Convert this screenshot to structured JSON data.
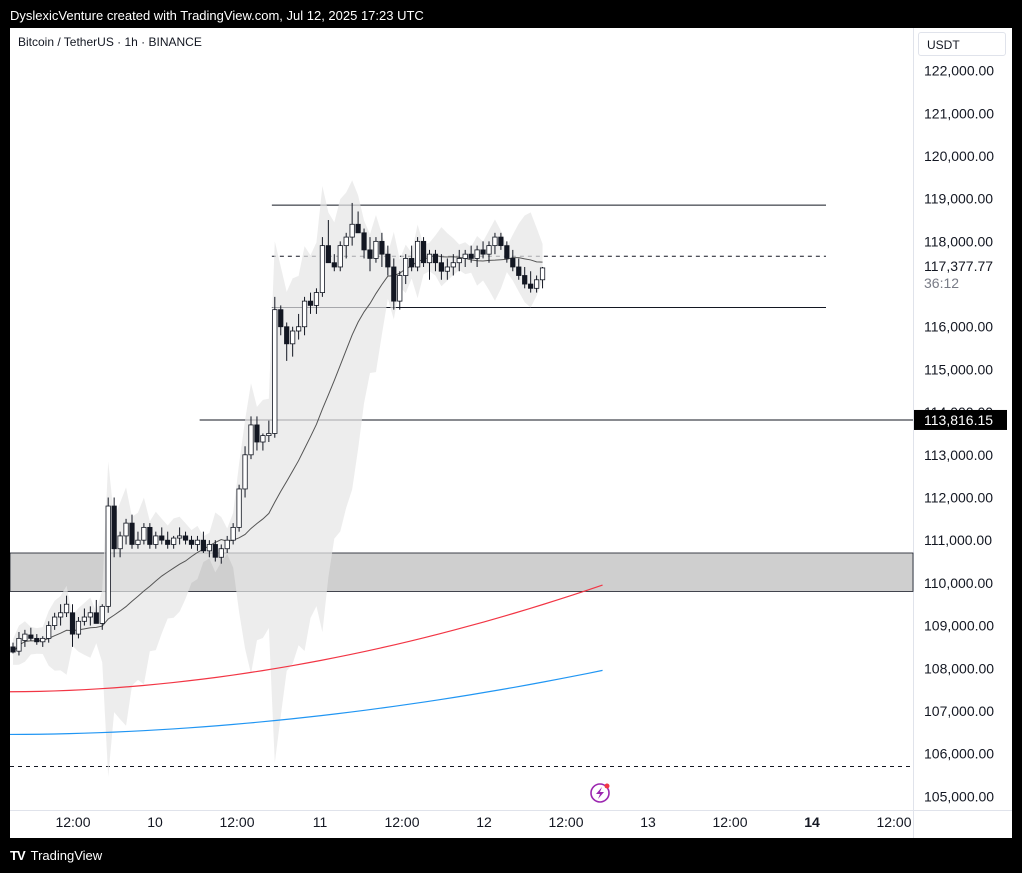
{
  "header": {
    "attribution": "DyslexicVenture created with TradingView.com, Jul 12, 2025 17:23 UTC"
  },
  "footer": {
    "brand": "TradingView"
  },
  "chart_data": {
    "type": "candlestick",
    "title": "Bitcoin / TetherUS · 1h · BINANCE",
    "currency": "USDT",
    "ylim": [
      104500,
      122700
    ],
    "y_ticks": [
      "122,000.00",
      "121,000.00",
      "120,000.00",
      "119,000.00",
      "118,000.00",
      "116,000.00",
      "115,000.00",
      "114,000.00",
      "113,000.00",
      "112,000.00",
      "111,000.00",
      "110,000.00",
      "109,000.00",
      "108,000.00",
      "107,000.00",
      "106,000.00",
      "105,000.00"
    ],
    "x_ticks": [
      {
        "label": "12:00",
        "bold": false
      },
      {
        "label": "10",
        "bold": false
      },
      {
        "label": "12:00",
        "bold": false
      },
      {
        "label": "11",
        "bold": false
      },
      {
        "label": "12:00",
        "bold": false
      },
      {
        "label": "12",
        "bold": false
      },
      {
        "label": "12:00",
        "bold": false
      },
      {
        "label": "13",
        "bold": false
      },
      {
        "label": "12:00",
        "bold": false
      },
      {
        "label": "14",
        "bold": true
      },
      {
        "label": "12:00",
        "bold": false
      }
    ],
    "last_price": {
      "value": "117,377.77",
      "countdown": "36:12"
    },
    "price_label": "113,816.15",
    "levels": [
      {
        "value": 118850,
        "style": "solid",
        "from": 0.29
      },
      {
        "value": 117650,
        "style": "dashed",
        "from": 0.29
      },
      {
        "value": 116450,
        "style": "solid",
        "from": 0.29
      },
      {
        "value": 113816.15,
        "style": "solid",
        "from": 0.21
      },
      {
        "value": 105700,
        "style": "dashed",
        "from": 0
      }
    ],
    "zone": [
      109800,
      110700
    ],
    "candles": [
      [
        108500,
        108600,
        108350,
        108380
      ],
      [
        108400,
        108850,
        108300,
        108700
      ],
      [
        108650,
        108900,
        108500,
        108800
      ],
      [
        108780,
        108950,
        108650,
        108700
      ],
      [
        108700,
        108800,
        108550,
        108620
      ],
      [
        108620,
        108750,
        108500,
        108700
      ],
      [
        108700,
        109100,
        108600,
        109000
      ],
      [
        109000,
        109300,
        108900,
        109200
      ],
      [
        109200,
        109500,
        109000,
        109300
      ],
      [
        109300,
        109700,
        109200,
        109500
      ],
      [
        109300,
        109500,
        108500,
        108800
      ],
      [
        108800,
        109200,
        108700,
        109100
      ],
      [
        109100,
        109400,
        109000,
        109200
      ],
      [
        109200,
        109450,
        109000,
        109300
      ],
      [
        109300,
        109600,
        109200,
        109050
      ],
      [
        109050,
        109500,
        108900,
        109450
      ],
      [
        109450,
        112000,
        109300,
        111800
      ],
      [
        111800,
        112000,
        110600,
        110800
      ],
      [
        110800,
        111200,
        110600,
        111100
      ],
      [
        111100,
        111500,
        110900,
        111400
      ],
      [
        111400,
        111600,
        110800,
        110900
      ],
      [
        110900,
        111200,
        110800,
        111000
      ],
      [
        111000,
        111400,
        110900,
        111300
      ],
      [
        111300,
        111400,
        110800,
        110900
      ],
      [
        110900,
        111200,
        110800,
        111100
      ],
      [
        111100,
        111300,
        110900,
        111000
      ],
      [
        111000,
        111200,
        110800,
        110900
      ],
      [
        110900,
        111100,
        110800,
        111050
      ],
      [
        111050,
        111300,
        110900,
        111100
      ],
      [
        111100,
        111200,
        110900,
        111000
      ],
      [
        111000,
        111100,
        110800,
        110900
      ],
      [
        110900,
        111100,
        110750,
        111000
      ],
      [
        111000,
        111200,
        110700,
        110750
      ],
      [
        110750,
        111000,
        110600,
        110900
      ],
      [
        110900,
        111000,
        110500,
        110600
      ],
      [
        110600,
        110900,
        110450,
        110800
      ],
      [
        110800,
        111100,
        110700,
        111000
      ],
      [
        111000,
        111400,
        110900,
        111300
      ],
      [
        111300,
        112300,
        111200,
        112200
      ],
      [
        112200,
        113200,
        112000,
        113000
      ],
      [
        113000,
        113900,
        112900,
        113700
      ],
      [
        113700,
        113900,
        113100,
        113300
      ],
      [
        113300,
        113500,
        113100,
        113450
      ],
      [
        113450,
        113800,
        113300,
        113500
      ],
      [
        113500,
        116700,
        113400,
        116400
      ],
      [
        116400,
        116500,
        115800,
        116000
      ],
      [
        116000,
        116100,
        115200,
        115600
      ],
      [
        115600,
        116000,
        115300,
        115900
      ],
      [
        115900,
        116300,
        115700,
        116000
      ],
      [
        116000,
        116700,
        115800,
        116600
      ],
      [
        116600,
        116800,
        116300,
        116500
      ],
      [
        116500,
        116900,
        116300,
        116800
      ],
      [
        116800,
        118100,
        116700,
        117900
      ],
      [
        117900,
        118500,
        117600,
        117500
      ],
      [
        117500,
        117700,
        117300,
        117400
      ],
      [
        117400,
        118000,
        117300,
        117900
      ],
      [
        117900,
        118200,
        117600,
        118100
      ],
      [
        118100,
        118900,
        117900,
        118400
      ],
      [
        118400,
        118700,
        118200,
        118200
      ],
      [
        118200,
        118300,
        117600,
        117800
      ],
      [
        117800,
        118100,
        117300,
        117600
      ],
      [
        117600,
        118100,
        117500,
        118000
      ],
      [
        118000,
        118200,
        117400,
        117700
      ],
      [
        117700,
        117900,
        117200,
        117400
      ],
      [
        117400,
        117600,
        116400,
        116600
      ],
      [
        116600,
        117300,
        116400,
        117200
      ],
      [
        117200,
        117700,
        117000,
        117600
      ],
      [
        117600,
        117900,
        117300,
        117400
      ],
      [
        117400,
        118100,
        117300,
        118000
      ],
      [
        118000,
        118100,
        117400,
        117500
      ],
      [
        117500,
        117800,
        117100,
        117700
      ],
      [
        117700,
        117800,
        117300,
        117500
      ],
      [
        117500,
        117700,
        117100,
        117300
      ],
      [
        117300,
        117600,
        117100,
        117400
      ],
      [
        117400,
        117700,
        117200,
        117500
      ],
      [
        117500,
        117800,
        117300,
        117600
      ],
      [
        117600,
        117800,
        117400,
        117700
      ],
      [
        117700,
        117900,
        117500,
        117600
      ],
      [
        117600,
        117900,
        117400,
        117800
      ],
      [
        117800,
        118000,
        117600,
        117700
      ],
      [
        117700,
        118000,
        117500,
        117900
      ],
      [
        117900,
        118200,
        117700,
        118100
      ],
      [
        118100,
        118200,
        117800,
        117900
      ],
      [
        117900,
        118000,
        117500,
        117600
      ],
      [
        117600,
        117800,
        117300,
        117400
      ],
      [
        117400,
        117600,
        117100,
        117200
      ],
      [
        117200,
        117400,
        116900,
        117000
      ],
      [
        117000,
        117300,
        116800,
        116900
      ],
      [
        116900,
        117200,
        116800,
        117100
      ],
      [
        117100,
        117400,
        116900,
        117377.77
      ]
    ],
    "series": [
      {
        "name": "",
        "color": "#131722",
        "values_start": [
          108600,
          108700,
          108900,
          109200,
          109800,
          110300,
          110700,
          111200,
          112200,
          113500,
          114600,
          115600,
          116200,
          116800,
          117100,
          117300,
          117450,
          117600,
          117500,
          117300
        ]
      },
      {
        "name": "",
        "color": "#f23645",
        "start": 107450,
        "end": 109950
      },
      {
        "name": "",
        "color": "#2196f3",
        "start": 106450,
        "end": 107950
      }
    ]
  }
}
